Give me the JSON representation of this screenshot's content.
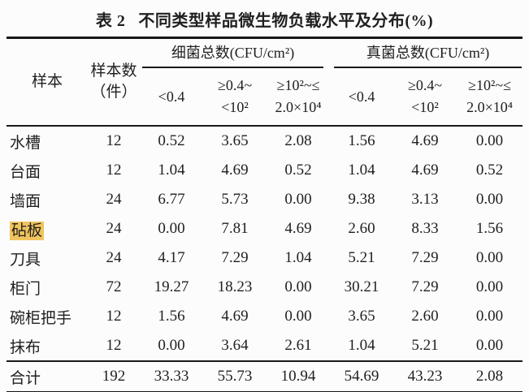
{
  "title": {
    "label": "表 2",
    "text": "不同类型样品微生物负载水平及分布(%)"
  },
  "table": {
    "headers": {
      "sample": "样本",
      "count_line1": "样本数",
      "count_line2": "（件）",
      "group_bacteria": "细菌总数(CFU/cm²)",
      "group_fungi": "真菌总数(CFU/cm²)",
      "range1": "<0.4",
      "range2_line1": "≥0.4~",
      "range2_line2": "<10²",
      "range3_line1": "≥10²~≤",
      "range3_line2": "2.0×10⁴"
    },
    "rows": [
      {
        "name": "水槽",
        "count": "12",
        "highlight": false,
        "values": [
          "0.52",
          "3.65",
          "2.08",
          "1.56",
          "4.69",
          "0.00"
        ]
      },
      {
        "name": "台面",
        "count": "12",
        "highlight": false,
        "values": [
          "1.04",
          "4.69",
          "0.52",
          "1.04",
          "4.69",
          "0.52"
        ]
      },
      {
        "name": "墙面",
        "count": "24",
        "highlight": false,
        "values": [
          "6.77",
          "5.73",
          "0.00",
          "9.38",
          "3.13",
          "0.00"
        ]
      },
      {
        "name": "砧板",
        "count": "24",
        "highlight": true,
        "values": [
          "0.00",
          "7.81",
          "4.69",
          "2.60",
          "8.33",
          "1.56"
        ]
      },
      {
        "name": "刀具",
        "count": "24",
        "highlight": false,
        "values": [
          "4.17",
          "7.29",
          "1.04",
          "5.21",
          "7.29",
          "0.00"
        ]
      },
      {
        "name": "柜门",
        "count": "72",
        "highlight": false,
        "values": [
          "19.27",
          "18.23",
          "0.00",
          "30.21",
          "7.29",
          "0.00"
        ]
      },
      {
        "name": "碗柜把手",
        "count": "12",
        "highlight": false,
        "values": [
          "1.56",
          "4.69",
          "0.00",
          "3.65",
          "2.60",
          "0.00"
        ]
      },
      {
        "name": "抹布",
        "count": "12",
        "highlight": false,
        "values": [
          "0.00",
          "3.64",
          "2.61",
          "1.04",
          "5.21",
          "0.00"
        ]
      }
    ],
    "total": {
      "name": "合计",
      "count": "192",
      "values": [
        "33.33",
        "55.73",
        "10.94",
        "54.69",
        "43.23",
        "2.08"
      ]
    }
  },
  "colors": {
    "highlight": "#f0c45e",
    "rule": "#1a1a1a",
    "text": "#1f1f1f",
    "background": "#fcfcfc"
  }
}
